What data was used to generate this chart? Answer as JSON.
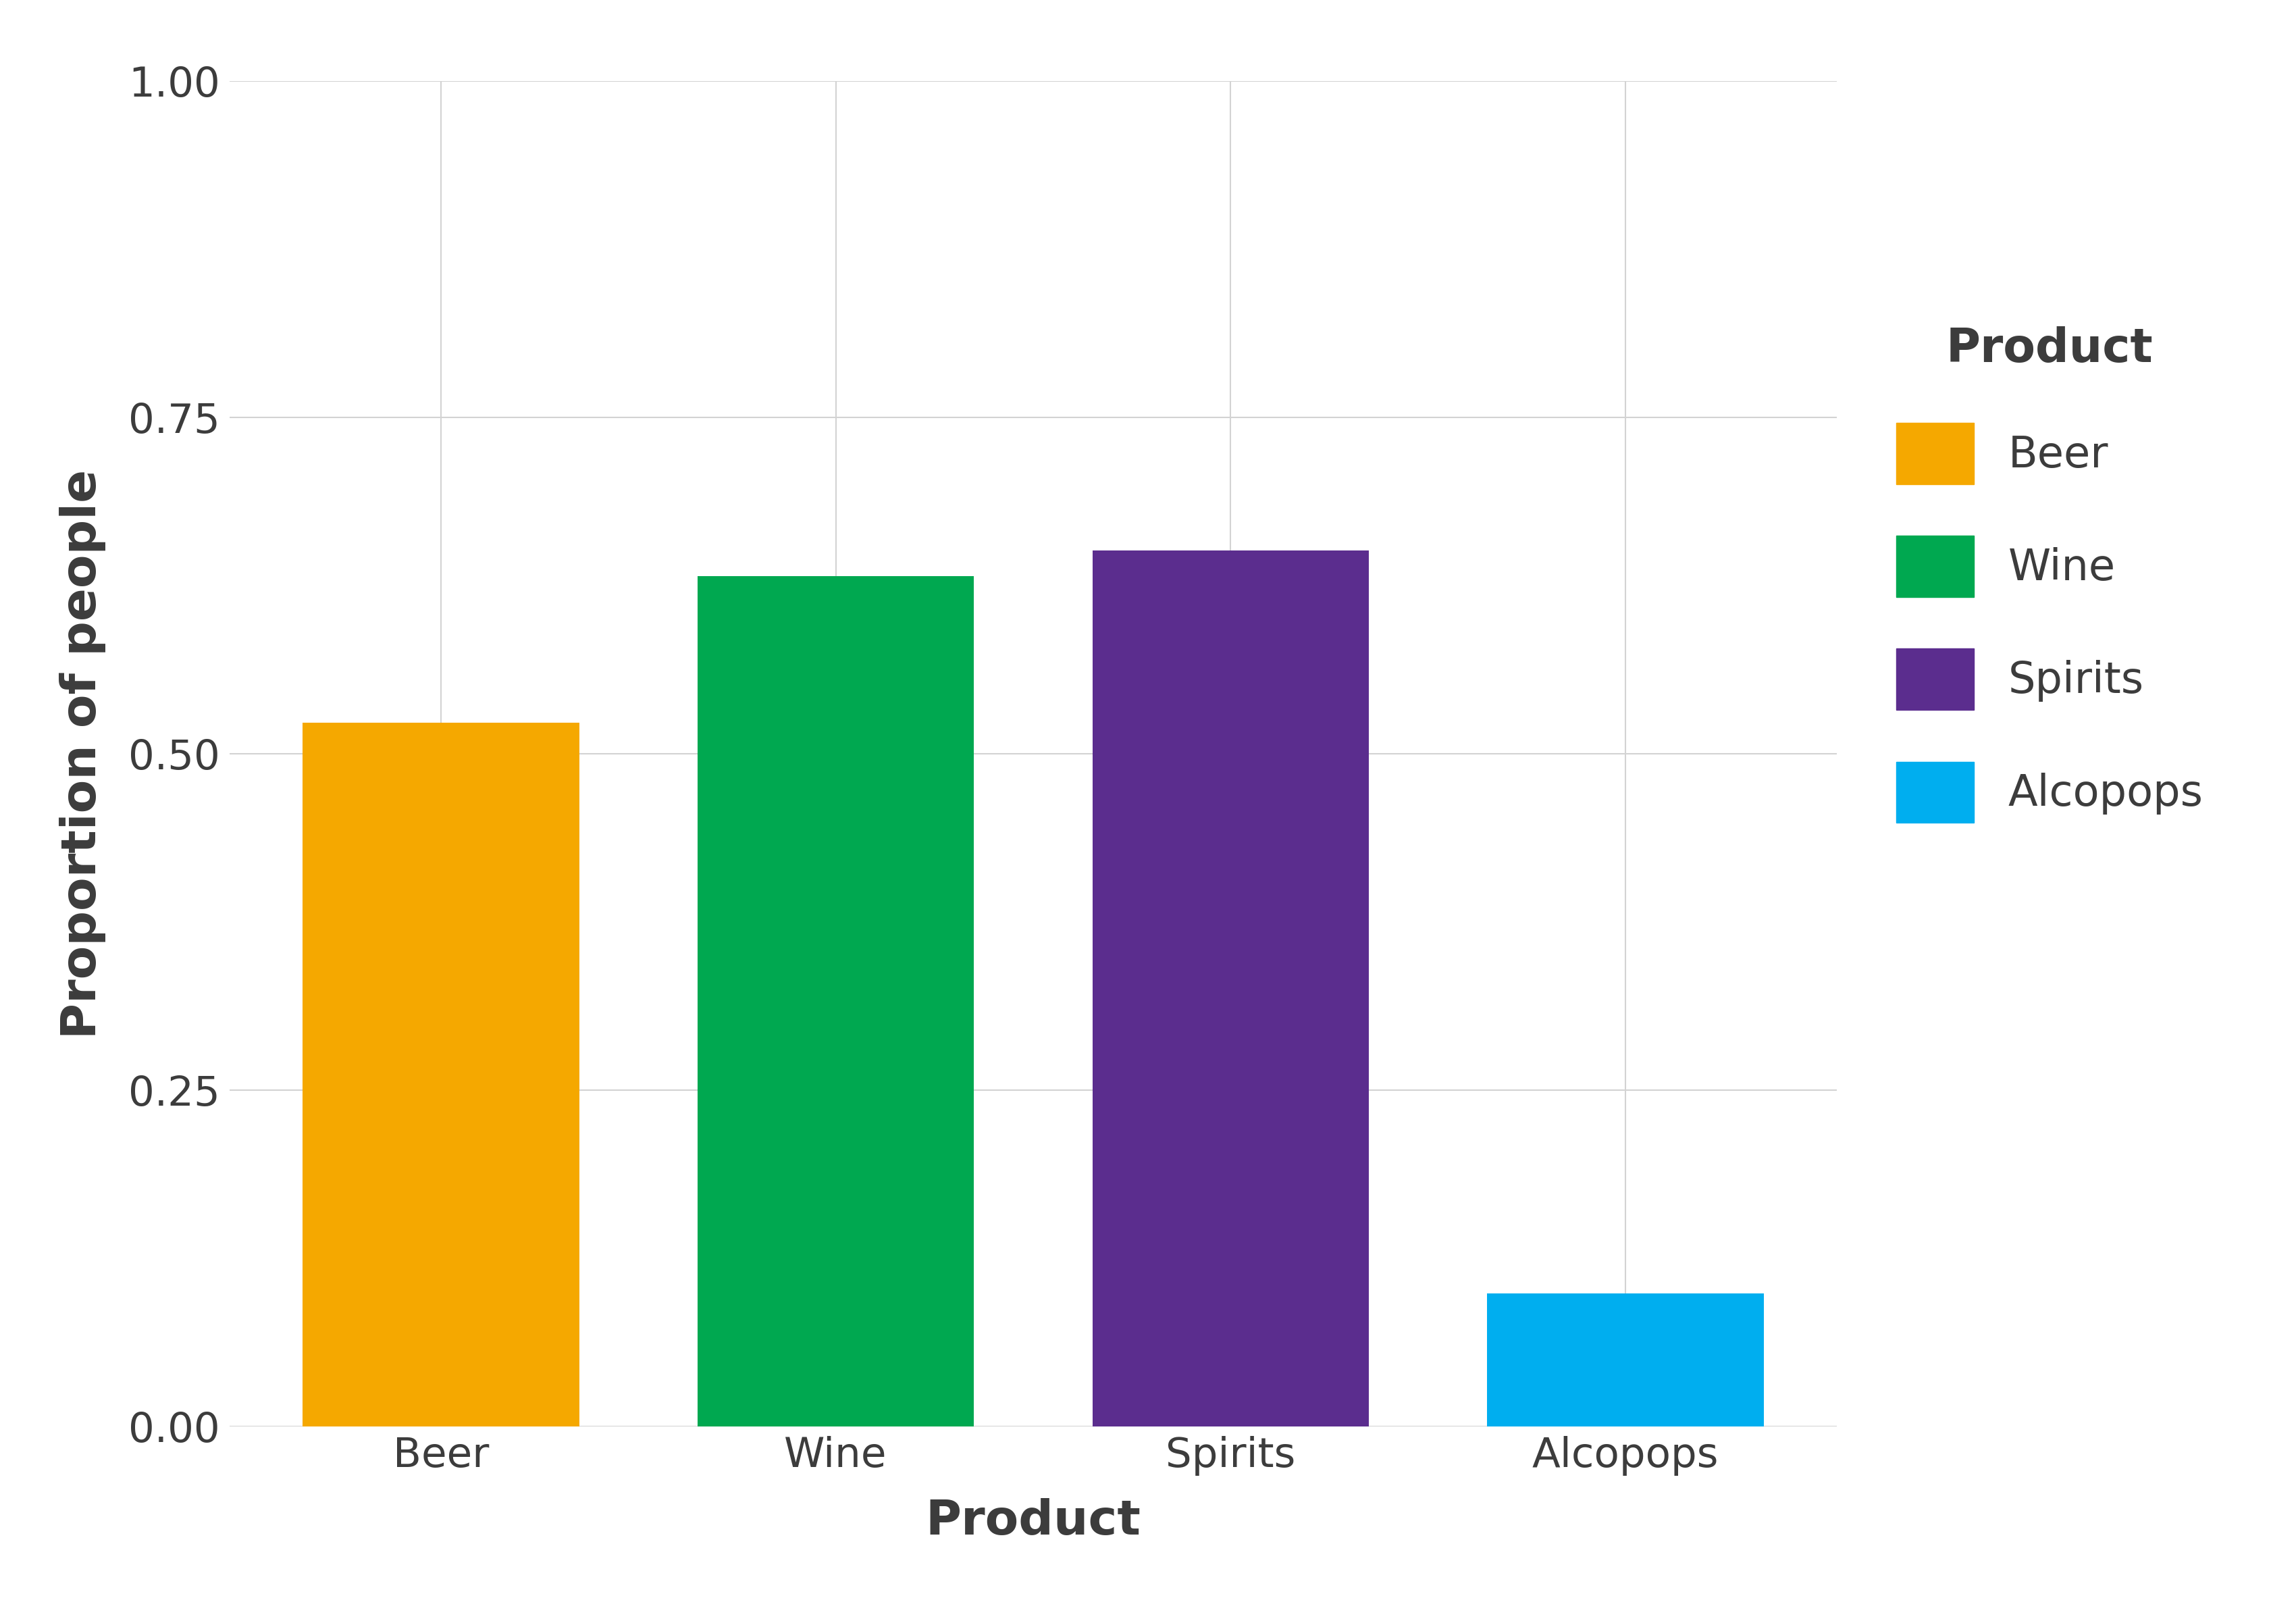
{
  "categories": [
    "Beer",
    "Wine",
    "Spirits",
    "Alcopops"
  ],
  "values": [
    0.523,
    0.632,
    0.651,
    0.099
  ],
  "bar_colors": [
    "#F5A800",
    "#00A850",
    "#5B2D8E",
    "#00AEEF"
  ],
  "xlabel": "Product",
  "ylabel": "Proportion of people",
  "ylim": [
    0,
    1.0
  ],
  "yticks": [
    0.0,
    0.25,
    0.5,
    0.75,
    1.0
  ],
  "ytick_labels": [
    "0.00",
    "0.25",
    "0.50",
    "0.75",
    "1.00"
  ],
  "legend_title": "Product",
  "legend_labels": [
    "Beer",
    "Wine",
    "Spirits",
    "Alcopops"
  ],
  "legend_colors": [
    "#F5A800",
    "#00A850",
    "#5B2D8E",
    "#00AEEF"
  ],
  "background_color": "#FFFFFF",
  "panel_background": "#FFFFFF",
  "grid_color": "#D3D3D3",
  "text_color": "#3C3C3C",
  "axis_label_fontsize": 52,
  "tick_fontsize": 44,
  "legend_title_fontsize": 50,
  "legend_label_fontsize": 46,
  "bar_width": 0.7
}
